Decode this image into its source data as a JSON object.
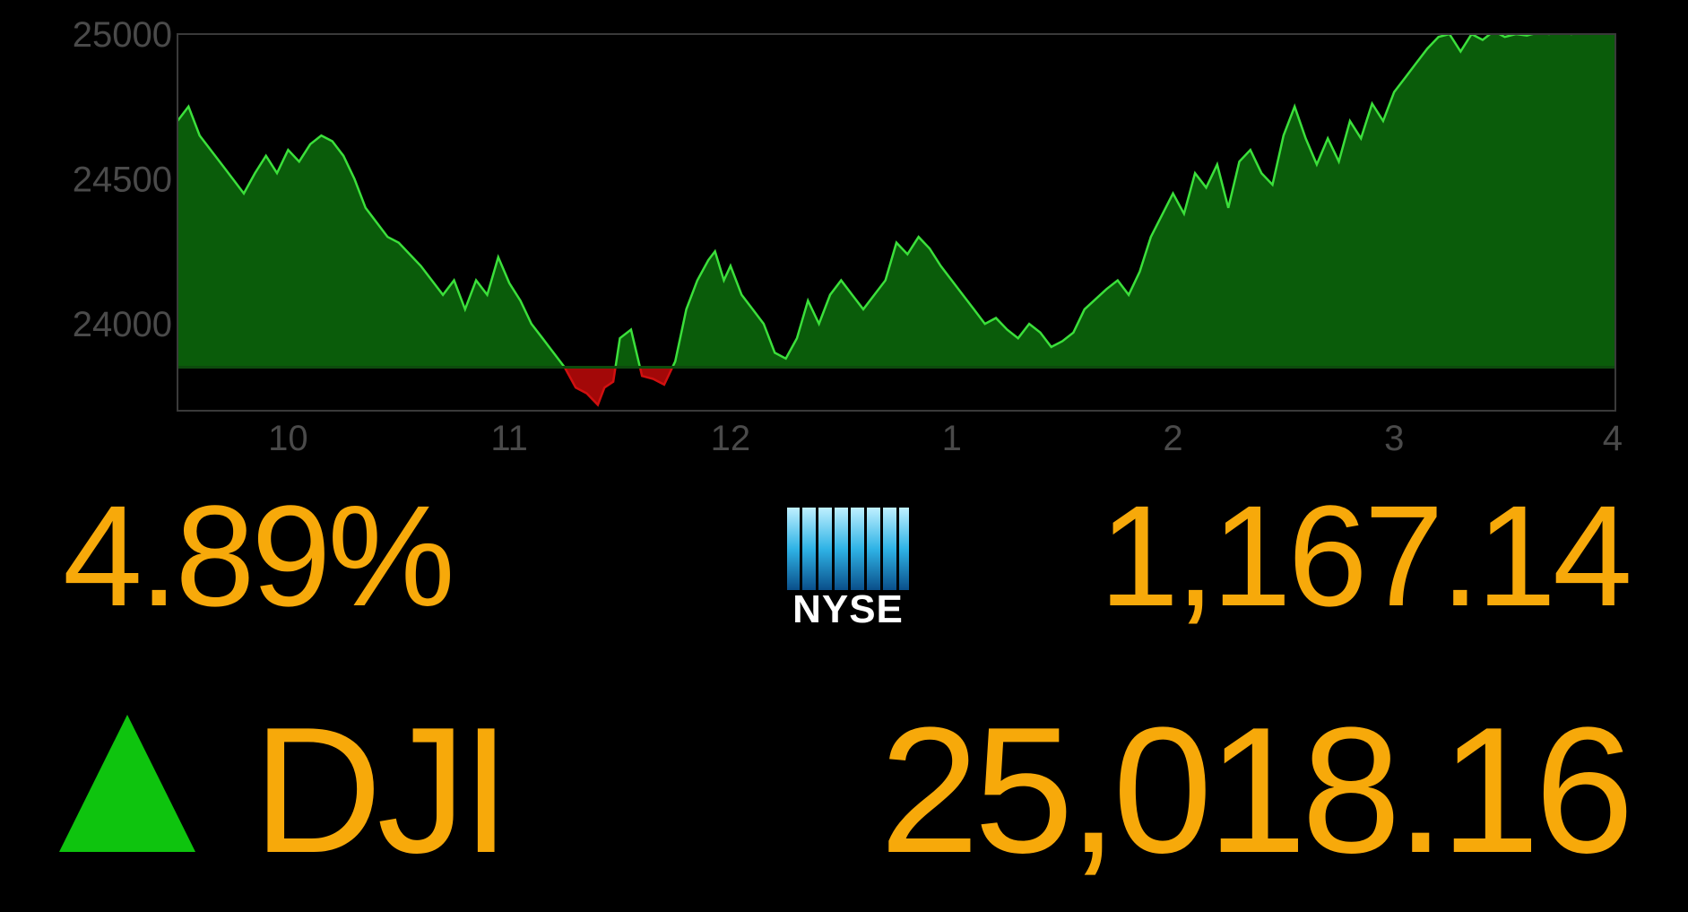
{
  "chart_data": {
    "type": "area",
    "title": "",
    "xlabel": "",
    "ylabel": "",
    "ylim": [
      23700,
      25000
    ],
    "baseline": 23850,
    "x_tick_labels": [
      "10",
      "11",
      "12",
      "1",
      "2",
      "3",
      "4"
    ],
    "y_tick_labels": [
      "25000",
      "24500",
      "24000"
    ],
    "y_tick_values": [
      25000,
      24500,
      24000
    ],
    "grid": false,
    "legend": "none",
    "colors": {
      "above": "#0a5c0a",
      "above_line": "#3be03b",
      "below": "#a30808",
      "axis": "#3a3a3a"
    },
    "series": [
      {
        "x": [
          9.5,
          9.55,
          9.6,
          9.7,
          9.75,
          9.8,
          9.85,
          9.9,
          9.95,
          10.0,
          10.05,
          10.1,
          10.15,
          10.2,
          10.25,
          10.3,
          10.35,
          10.4,
          10.45,
          10.5,
          10.6,
          10.7,
          10.75,
          10.8,
          10.85,
          10.9,
          10.95,
          11.0,
          11.05,
          11.1,
          11.15,
          11.2,
          11.25,
          11.3,
          11.35,
          11.4,
          11.43,
          11.47,
          11.5,
          11.55,
          11.6,
          11.65,
          11.7,
          11.75,
          11.8,
          11.85,
          11.9,
          11.93,
          11.97,
          12.0,
          12.05,
          12.1,
          12.15,
          12.2,
          12.25,
          12.3,
          12.35,
          12.4,
          12.45,
          12.5,
          12.55,
          12.6,
          12.7,
          12.75,
          12.8,
          12.85,
          12.9,
          12.95,
          13.0,
          13.05,
          13.1,
          13.15,
          13.2,
          13.25,
          13.3,
          13.35,
          13.4,
          13.45,
          13.5,
          13.55,
          13.6,
          13.7,
          13.75,
          13.8,
          13.85,
          13.9,
          14.0,
          14.05,
          14.1,
          14.15,
          14.2,
          14.25,
          14.3,
          14.35,
          14.4,
          14.45,
          14.5,
          14.55,
          14.6,
          14.65,
          14.7,
          14.75,
          14.8,
          14.85,
          14.9,
          14.95,
          15.0,
          15.05,
          15.1,
          15.15,
          15.2,
          15.25,
          15.3,
          15.35,
          15.4,
          15.45,
          15.5,
          15.55,
          15.6,
          15.65,
          15.7,
          15.75,
          15.8,
          15.85,
          15.9,
          15.95,
          16.0
        ],
        "y": [
          24700,
          24750,
          24650,
          24550,
          24500,
          24450,
          24520,
          24580,
          24520,
          24600,
          24560,
          24620,
          24650,
          24630,
          24580,
          24500,
          24400,
          24350,
          24300,
          24280,
          24200,
          24100,
          24150,
          24050,
          24150,
          24100,
          24230,
          24140,
          24080,
          24000,
          23950,
          23900,
          23850,
          23780,
          23760,
          23720,
          23780,
          23800,
          23950,
          23980,
          23820,
          23810,
          23790,
          23870,
          24050,
          24150,
          24220,
          24250,
          24150,
          24200,
          24100,
          24050,
          24000,
          23900,
          23880,
          23950,
          24080,
          24000,
          24100,
          24150,
          24100,
          24050,
          24150,
          24280,
          24240,
          24300,
          24260,
          24200,
          24150,
          24100,
          24050,
          24000,
          24020,
          23980,
          23950,
          24000,
          23970,
          23920,
          23940,
          23970,
          24050,
          24120,
          24150,
          24100,
          24180,
          24300,
          24450,
          24380,
          24520,
          24470,
          24550,
          24400,
          24560,
          24600,
          24520,
          24480,
          24650,
          24750,
          24640,
          24550,
          24640,
          24560,
          24700,
          24640,
          24760,
          24700,
          24800,
          24850,
          24900,
          24950,
          24990,
          25000,
          24940,
          25000,
          24980,
          25010,
          24990,
          25000,
          24995,
          25005,
          25000,
          25010,
          25000,
          25005,
          25010,
          25015,
          25000
        ]
      }
    ]
  },
  "summary": {
    "percent": "4.89%",
    "nyse_value": "1,167.14",
    "index_name": "DJI",
    "index_value": "25,018.16",
    "direction": "up",
    "arrow_color": "#0ec40e",
    "number_color": "#f7a90a"
  },
  "nyse_logo": {
    "text": "NYSE",
    "icon": "nyse-columns-icon"
  }
}
